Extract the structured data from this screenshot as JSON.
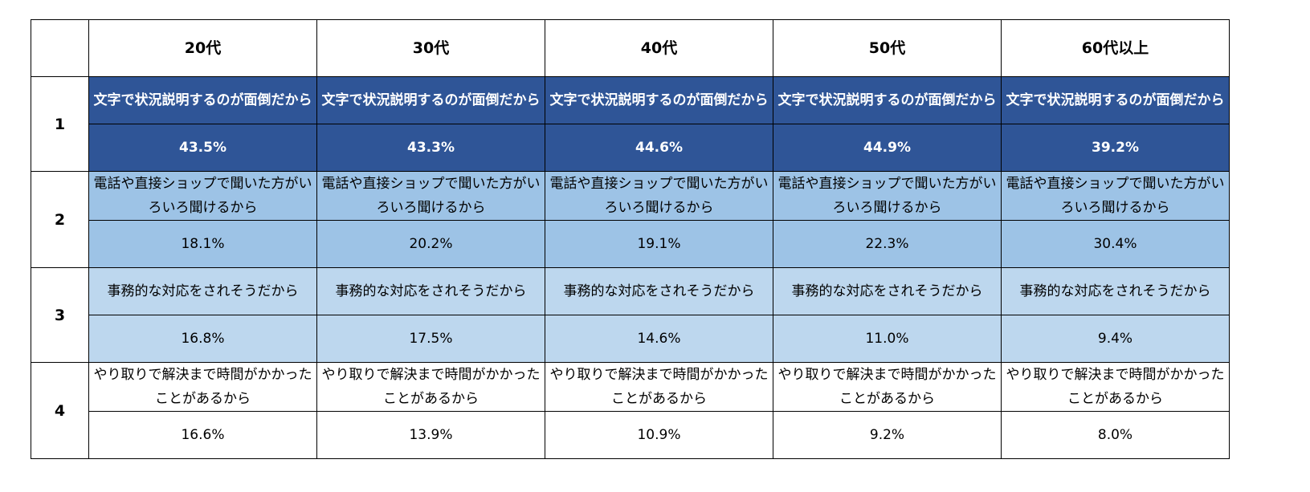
{
  "table": {
    "header": [
      "20代",
      "30代",
      "40代",
      "50代",
      "60代以上"
    ],
    "rows": [
      {
        "rank": "1",
        "reasons": [
          "文字で状況説明するのが面倒だから",
          "文字で状況説明するのが面倒だから",
          "文字で状況説明するのが面倒だから",
          "文字で状況説明するのが面倒だから",
          "文字で状況説明するのが面倒だから"
        ],
        "values": [
          "43.5%",
          "43.3%",
          "44.6%",
          "44.9%",
          "39.2%"
        ]
      },
      {
        "rank": "2",
        "reasons": [
          "電話や直接ショップで聞いた方がいろいろ聞けるから",
          "電話や直接ショップで聞いた方がいろいろ聞けるから",
          "電話や直接ショップで聞いた方がいろいろ聞けるから",
          "電話や直接ショップで聞いた方がいろいろ聞けるから",
          "電話や直接ショップで聞いた方がいろいろ聞けるから"
        ],
        "values": [
          "18.1%",
          "20.2%",
          "19.1%",
          "22.3%",
          "30.4%"
        ]
      },
      {
        "rank": "3",
        "reasons": [
          "事務的な対応をされそうだから",
          "事務的な対応をされそうだから",
          "事務的な対応をされそうだから",
          "事務的な対応をされそうだから",
          "事務的な対応をされそうだから"
        ],
        "values": [
          "16.8%",
          "17.5%",
          "14.6%",
          "11.0%",
          "9.4%"
        ]
      },
      {
        "rank": "4",
        "reasons": [
          "やり取りで解決まで時間がかかったことがあるから",
          "やり取りで解決まで時間がかかったことがあるから",
          "やり取りで解決まで時間がかかったことがあるから",
          "やり取りで解決まで時間がかかったことがあるから",
          "やり取りで解決まで時間がかかったことがあるから"
        ],
        "values": [
          "16.6%",
          "13.9%",
          "10.9%",
          "9.2%",
          "8.0%"
        ]
      }
    ]
  }
}
